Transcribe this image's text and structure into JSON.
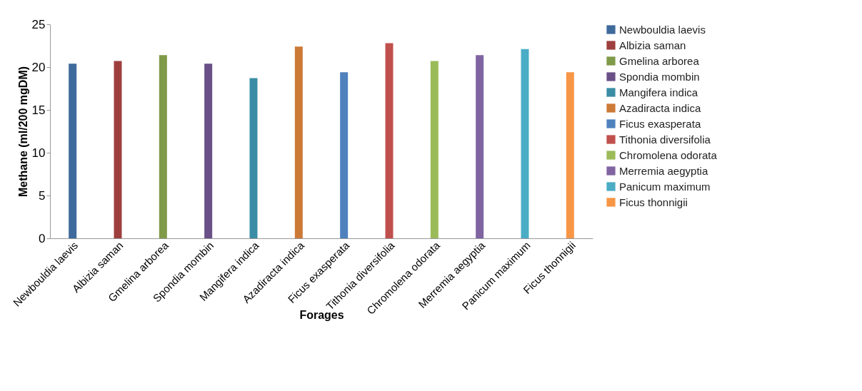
{
  "chart_data": {
    "type": "bar",
    "xlabel": "Forages",
    "ylabel": "Methane (ml/200 mgDM)",
    "categories": [
      "Newbouldia laevis",
      "Albizia saman",
      "Gmelina arborea",
      "Spondia mombin",
      "Mangifera indica",
      "Azadiracta indica",
      "Ficus exasperata",
      "Tithonia diversifolia",
      "Chromolena odorata",
      "Merremia aegyptia",
      "Panicum maximum",
      "Ficus thonnigii"
    ],
    "series": [
      {
        "name": "Newbouldia laevis",
        "color": "#3f6a9c",
        "values": [
          20.4,
          null,
          null,
          null,
          null,
          null,
          null,
          null,
          null,
          null,
          null,
          null
        ]
      },
      {
        "name": "Albizia saman",
        "color": "#9e3f3e",
        "values": [
          null,
          20.7,
          null,
          null,
          null,
          null,
          null,
          null,
          null,
          null,
          null,
          null
        ]
      },
      {
        "name": "Gmelina arborea",
        "color": "#7f9a48",
        "values": [
          null,
          null,
          21.4,
          null,
          null,
          null,
          null,
          null,
          null,
          null,
          null,
          null
        ]
      },
      {
        "name": "Spondia mombin",
        "color": "#6a5087",
        "values": [
          null,
          null,
          null,
          20.4,
          null,
          null,
          null,
          null,
          null,
          null,
          null,
          null
        ]
      },
      {
        "name": "Mangifera indica",
        "color": "#3a8da5",
        "values": [
          null,
          null,
          null,
          null,
          18.7,
          null,
          null,
          null,
          null,
          null,
          null,
          null
        ]
      },
      {
        "name": "Azadiracta indica",
        "color": "#cc7a38",
        "values": [
          null,
          null,
          null,
          null,
          null,
          22.4,
          null,
          null,
          null,
          null,
          null,
          null
        ]
      },
      {
        "name": "Ficus exasperata",
        "color": "#4f81bd",
        "values": [
          null,
          null,
          null,
          null,
          null,
          null,
          19.4,
          null,
          null,
          null,
          null,
          null
        ]
      },
      {
        "name": "Tithonia diversifolia",
        "color": "#c0504d",
        "values": [
          null,
          null,
          null,
          null,
          null,
          null,
          null,
          22.8,
          null,
          null,
          null,
          null
        ]
      },
      {
        "name": "Chromolena odorata",
        "color": "#9bbb59",
        "values": [
          null,
          null,
          null,
          null,
          null,
          null,
          null,
          null,
          20.7,
          null,
          null,
          null
        ]
      },
      {
        "name": "Merremia aegyptia",
        "color": "#8064a2",
        "values": [
          null,
          null,
          null,
          null,
          null,
          null,
          null,
          null,
          null,
          21.4,
          null,
          null
        ]
      },
      {
        "name": "Panicum maximum",
        "color": "#4bacc6",
        "values": [
          null,
          null,
          null,
          null,
          null,
          null,
          null,
          null,
          null,
          null,
          22.1,
          null
        ]
      },
      {
        "name": "Ficus thonnigii",
        "color": "#f79646",
        "values": [
          null,
          null,
          null,
          null,
          null,
          null,
          null,
          null,
          null,
          null,
          null,
          19.4
        ]
      }
    ],
    "ylim": [
      0,
      25
    ],
    "yticks": [
      0,
      5,
      10,
      15,
      20,
      25
    ],
    "grid": false,
    "legend": "right"
  }
}
